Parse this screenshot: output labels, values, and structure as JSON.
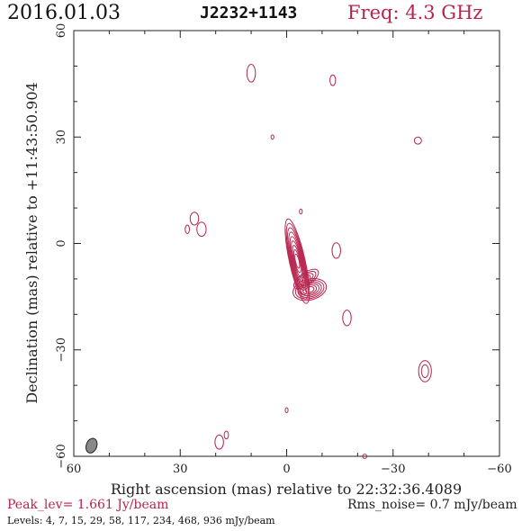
{
  "header": {
    "date": "2016.01.03",
    "source": "J2232+1143",
    "frequency": "Freq: 4.3 GHz"
  },
  "footer": {
    "peak": "Peak_lev=  1.661 Jy/beam",
    "rms": "Rms_noise=  0.7 mJy/beam",
    "levels": "Levels:  4,  7,  15,  29,  58,  117,  234,  468,  936 mJy/beam"
  },
  "chart_data": {
    "type": "contour",
    "xlabel": "Right ascension (mas) relative to 22:32:36.4089",
    "ylabel": "Declination (mas) relative to +11:43:50.904",
    "xlim": [
      60,
      -60
    ],
    "ylim": [
      -60,
      60
    ],
    "xticks": [
      60,
      30,
      0,
      -30,
      -60
    ],
    "yticks": [
      -60,
      -30,
      0,
      30,
      60
    ],
    "x_tick_labels": [
      "60",
      "30",
      "0",
      "−30",
      "−60"
    ],
    "y_tick_labels": [
      "−60",
      "−30",
      "0",
      "30",
      "60"
    ],
    "contour_levels_mjy": [
      4,
      7,
      15,
      29,
      58,
      117,
      234,
      468,
      936
    ],
    "peak_jy_per_beam": 1.661,
    "rms_noise_mjy_per_beam": 0.7,
    "contour_color": "#b8244e",
    "beam": {
      "x": 55,
      "y": -57,
      "major": 3.5,
      "minor": 2.2,
      "pa_deg": 20,
      "color": "#888888"
    },
    "core_ridge": [
      [
        -1,
        4
      ],
      [
        -2,
        0
      ],
      [
        -3,
        -5
      ],
      [
        -4,
        -10
      ],
      [
        -5,
        -14
      ]
    ],
    "blob": {
      "x": -7,
      "y": -13
    },
    "noise_islands": [
      {
        "x": 10,
        "y": 48,
        "rx": 1.2,
        "ry": 2.5
      },
      {
        "x": -13,
        "y": 46,
        "rx": 0.8,
        "ry": 1.5
      },
      {
        "x": 4,
        "y": 30,
        "rx": 0.4,
        "ry": 0.6
      },
      {
        "x": -37,
        "y": 29,
        "rx": 1.0,
        "ry": 1.0
      },
      {
        "x": -4,
        "y": 9,
        "rx": 0.4,
        "ry": 0.7
      },
      {
        "x": 26,
        "y": 7,
        "rx": 1.2,
        "ry": 1.8
      },
      {
        "x": 24,
        "y": 4,
        "rx": 1.3,
        "ry": 2.0
      },
      {
        "x": 28,
        "y": 4,
        "rx": 0.6,
        "ry": 1.2
      },
      {
        "x": -14,
        "y": -2,
        "rx": 1.2,
        "ry": 2.2
      },
      {
        "x": -17,
        "y": -21,
        "rx": 1.2,
        "ry": 2.2
      },
      {
        "x": -39,
        "y": -36,
        "rx": 1.8,
        "ry": 3.0
      },
      {
        "x": -39,
        "y": -36,
        "rx": 1.0,
        "ry": 1.8
      },
      {
        "x": 0,
        "y": -47,
        "rx": 0.4,
        "ry": 0.7
      },
      {
        "x": 19,
        "y": -56,
        "rx": 1.2,
        "ry": 2.0
      },
      {
        "x": 17,
        "y": -54,
        "rx": 0.6,
        "ry": 1.1
      },
      {
        "x": -22,
        "y": -60,
        "rx": 0.6,
        "ry": 0.6
      }
    ]
  }
}
